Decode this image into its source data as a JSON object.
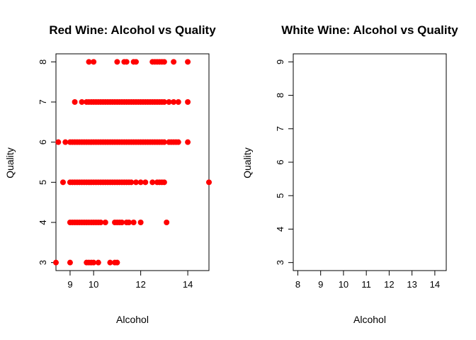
{
  "chart_data": [
    {
      "type": "scatter",
      "title": "Red Wine: Alcohol vs Quality",
      "xlabel": "Alcohol",
      "ylabel": "Quality",
      "xlim": [
        8.4,
        14.9
      ],
      "ylim": [
        2.8,
        8.2
      ],
      "x_ticks": [
        9,
        10,
        12,
        14
      ],
      "y_ticks": [
        3,
        4,
        5,
        6,
        7,
        8
      ],
      "point_color": "#ff0000",
      "grid": false,
      "series": [
        {
          "points": [
            [
              8.4,
              3
            ],
            [
              9.0,
              3
            ],
            [
              9.7,
              3
            ],
            [
              9.8,
              3
            ],
            [
              9.9,
              3
            ],
            [
              10.0,
              3
            ],
            [
              10.2,
              3
            ],
            [
              10.7,
              3
            ],
            [
              10.9,
              3
            ],
            [
              11.0,
              3
            ],
            [
              9.0,
              4
            ],
            [
              9.1,
              4
            ],
            [
              9.2,
              4
            ],
            [
              9.3,
              4
            ],
            [
              9.4,
              4
            ],
            [
              9.5,
              4
            ],
            [
              9.6,
              4
            ],
            [
              9.7,
              4
            ],
            [
              9.8,
              4
            ],
            [
              9.9,
              4
            ],
            [
              10.0,
              4
            ],
            [
              10.1,
              4
            ],
            [
              10.2,
              4
            ],
            [
              10.3,
              4
            ],
            [
              10.5,
              4
            ],
            [
              10.9,
              4
            ],
            [
              11.0,
              4
            ],
            [
              11.1,
              4
            ],
            [
              11.2,
              4
            ],
            [
              11.4,
              4
            ],
            [
              11.5,
              4
            ],
            [
              11.7,
              4
            ],
            [
              12.0,
              4
            ],
            [
              13.1,
              4
            ],
            [
              8.7,
              5
            ],
            [
              9.0,
              5
            ],
            [
              9.1,
              5
            ],
            [
              9.2,
              5
            ],
            [
              9.3,
              5
            ],
            [
              9.4,
              5
            ],
            [
              9.5,
              5
            ],
            [
              9.6,
              5
            ],
            [
              9.7,
              5
            ],
            [
              9.8,
              5
            ],
            [
              9.9,
              5
            ],
            [
              10.0,
              5
            ],
            [
              10.1,
              5
            ],
            [
              10.2,
              5
            ],
            [
              10.3,
              5
            ],
            [
              10.4,
              5
            ],
            [
              10.5,
              5
            ],
            [
              10.6,
              5
            ],
            [
              10.7,
              5
            ],
            [
              10.8,
              5
            ],
            [
              10.9,
              5
            ],
            [
              11.0,
              5
            ],
            [
              11.1,
              5
            ],
            [
              11.2,
              5
            ],
            [
              11.3,
              5
            ],
            [
              11.4,
              5
            ],
            [
              11.5,
              5
            ],
            [
              11.6,
              5
            ],
            [
              11.8,
              5
            ],
            [
              12.0,
              5
            ],
            [
              12.2,
              5
            ],
            [
              12.5,
              5
            ],
            [
              12.7,
              5
            ],
            [
              12.8,
              5
            ],
            [
              12.9,
              5
            ],
            [
              13.0,
              5
            ],
            [
              14.9,
              5
            ],
            [
              8.5,
              6
            ],
            [
              8.8,
              6
            ],
            [
              9.0,
              6
            ],
            [
              9.1,
              6
            ],
            [
              9.2,
              6
            ],
            [
              9.3,
              6
            ],
            [
              9.4,
              6
            ],
            [
              9.5,
              6
            ],
            [
              9.6,
              6
            ],
            [
              9.7,
              6
            ],
            [
              9.8,
              6
            ],
            [
              9.9,
              6
            ],
            [
              10.0,
              6
            ],
            [
              10.1,
              6
            ],
            [
              10.2,
              6
            ],
            [
              10.3,
              6
            ],
            [
              10.4,
              6
            ],
            [
              10.5,
              6
            ],
            [
              10.6,
              6
            ],
            [
              10.7,
              6
            ],
            [
              10.8,
              6
            ],
            [
              10.9,
              6
            ],
            [
              11.0,
              6
            ],
            [
              11.1,
              6
            ],
            [
              11.2,
              6
            ],
            [
              11.3,
              6
            ],
            [
              11.4,
              6
            ],
            [
              11.5,
              6
            ],
            [
              11.6,
              6
            ],
            [
              11.7,
              6
            ],
            [
              11.8,
              6
            ],
            [
              11.9,
              6
            ],
            [
              12.0,
              6
            ],
            [
              12.1,
              6
            ],
            [
              12.2,
              6
            ],
            [
              12.3,
              6
            ],
            [
              12.4,
              6
            ],
            [
              12.5,
              6
            ],
            [
              12.6,
              6
            ],
            [
              12.7,
              6
            ],
            [
              12.8,
              6
            ],
            [
              12.9,
              6
            ],
            [
              13.0,
              6
            ],
            [
              13.2,
              6
            ],
            [
              13.3,
              6
            ],
            [
              13.4,
              6
            ],
            [
              13.5,
              6
            ],
            [
              13.6,
              6
            ],
            [
              14.0,
              6
            ],
            [
              9.2,
              7
            ],
            [
              9.5,
              7
            ],
            [
              9.7,
              7
            ],
            [
              9.8,
              7
            ],
            [
              9.9,
              7
            ],
            [
              10.0,
              7
            ],
            [
              10.1,
              7
            ],
            [
              10.2,
              7
            ],
            [
              10.3,
              7
            ],
            [
              10.4,
              7
            ],
            [
              10.5,
              7
            ],
            [
              10.6,
              7
            ],
            [
              10.7,
              7
            ],
            [
              10.8,
              7
            ],
            [
              10.9,
              7
            ],
            [
              11.0,
              7
            ],
            [
              11.1,
              7
            ],
            [
              11.2,
              7
            ],
            [
              11.3,
              7
            ],
            [
              11.4,
              7
            ],
            [
              11.5,
              7
            ],
            [
              11.6,
              7
            ],
            [
              11.7,
              7
            ],
            [
              11.8,
              7
            ],
            [
              11.9,
              7
            ],
            [
              12.0,
              7
            ],
            [
              12.1,
              7
            ],
            [
              12.2,
              7
            ],
            [
              12.3,
              7
            ],
            [
              12.4,
              7
            ],
            [
              12.5,
              7
            ],
            [
              12.6,
              7
            ],
            [
              12.7,
              7
            ],
            [
              12.8,
              7
            ],
            [
              12.9,
              7
            ],
            [
              13.0,
              7
            ],
            [
              13.2,
              7
            ],
            [
              13.4,
              7
            ],
            [
              13.6,
              7
            ],
            [
              14.0,
              7
            ],
            [
              9.8,
              8
            ],
            [
              10.0,
              8
            ],
            [
              11.0,
              8
            ],
            [
              11.3,
              8
            ],
            [
              11.4,
              8
            ],
            [
              11.7,
              8
            ],
            [
              11.8,
              8
            ],
            [
              12.5,
              8
            ],
            [
              12.6,
              8
            ],
            [
              12.7,
              8
            ],
            [
              12.8,
              8
            ],
            [
              12.9,
              8
            ],
            [
              13.0,
              8
            ],
            [
              13.4,
              8
            ],
            [
              14.0,
              8
            ]
          ]
        }
      ]
    },
    {
      "type": "scatter",
      "title": "White Wine: Alcohol vs Quality",
      "xlabel": "Alcohol",
      "ylabel": "Quality",
      "xlim": [
        7.8,
        14.5
      ],
      "ylim": [
        2.76,
        9.24
      ],
      "x_ticks": [
        8,
        9,
        10,
        11,
        12,
        13,
        14
      ],
      "y_ticks": [
        3,
        4,
        5,
        6,
        7,
        8,
        9
      ],
      "grid": false,
      "series": [
        {
          "points": []
        }
      ]
    }
  ]
}
